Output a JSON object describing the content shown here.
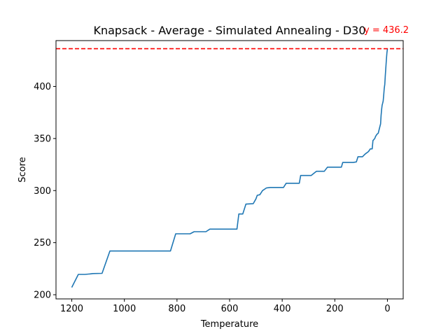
{
  "chart_data": {
    "type": "line",
    "title": "Knapsack - Average - Simulated Annealing - D30",
    "xlabel": "Temperature",
    "ylabel": "Score",
    "xlim": [
      1260,
      -60
    ],
    "ylim": [
      196,
      444
    ],
    "x_inverted": true,
    "grid": false,
    "xticks": [
      1200,
      1000,
      800,
      600,
      400,
      200,
      0
    ],
    "yticks": [
      200,
      250,
      300,
      350,
      400
    ],
    "series": [
      {
        "color": "#1f77b4",
        "points": [
          [
            1200,
            207
          ],
          [
            1175,
            219.5
          ],
          [
            1150,
            219.5
          ],
          [
            1130,
            220
          ],
          [
            1120,
            220.3
          ],
          [
            1085,
            220.5
          ],
          [
            1055,
            242
          ],
          [
            1000,
            242
          ],
          [
            900,
            242
          ],
          [
            825,
            242
          ],
          [
            805,
            258.5
          ],
          [
            750,
            258.5
          ],
          [
            735,
            260.5
          ],
          [
            690,
            260.5
          ],
          [
            675,
            263
          ],
          [
            600,
            263
          ],
          [
            572,
            263
          ],
          [
            565,
            277.5
          ],
          [
            550,
            277.5
          ],
          [
            538,
            287
          ],
          [
            510,
            287.5
          ],
          [
            500,
            292
          ],
          [
            495,
            295.5
          ],
          [
            485,
            296
          ],
          [
            475,
            300
          ],
          [
            460,
            302.5
          ],
          [
            445,
            303
          ],
          [
            395,
            303
          ],
          [
            385,
            307
          ],
          [
            350,
            307
          ],
          [
            335,
            307
          ],
          [
            330,
            314.5
          ],
          [
            290,
            314.5
          ],
          [
            280,
            316.5
          ],
          [
            270,
            318.5
          ],
          [
            240,
            318.5
          ],
          [
            228,
            322.5
          ],
          [
            200,
            322.5
          ],
          [
            175,
            322.5
          ],
          [
            170,
            327
          ],
          [
            130,
            327
          ],
          [
            118,
            327.5
          ],
          [
            112,
            332.5
          ],
          [
            95,
            332.5
          ],
          [
            85,
            335
          ],
          [
            72,
            337.5
          ],
          [
            65,
            340
          ],
          [
            58,
            340
          ],
          [
            55,
            348
          ],
          [
            48,
            350
          ],
          [
            45,
            352
          ],
          [
            40,
            354
          ],
          [
            35,
            355
          ],
          [
            32,
            358
          ],
          [
            28,
            362
          ],
          [
            26,
            364
          ],
          [
            24,
            372
          ],
          [
            22,
            378
          ],
          [
            20,
            382
          ],
          [
            18,
            384
          ],
          [
            16,
            386
          ],
          [
            14,
            392
          ],
          [
            12,
            398
          ],
          [
            10,
            402
          ],
          [
            8,
            410
          ],
          [
            6,
            418
          ],
          [
            4,
            426
          ],
          [
            2,
            432
          ],
          [
            0,
            436.2
          ]
        ]
      }
    ],
    "hline": {
      "y": 436.2,
      "color": "#ff0000",
      "style": "dashed",
      "label": "y = 436.2"
    }
  }
}
